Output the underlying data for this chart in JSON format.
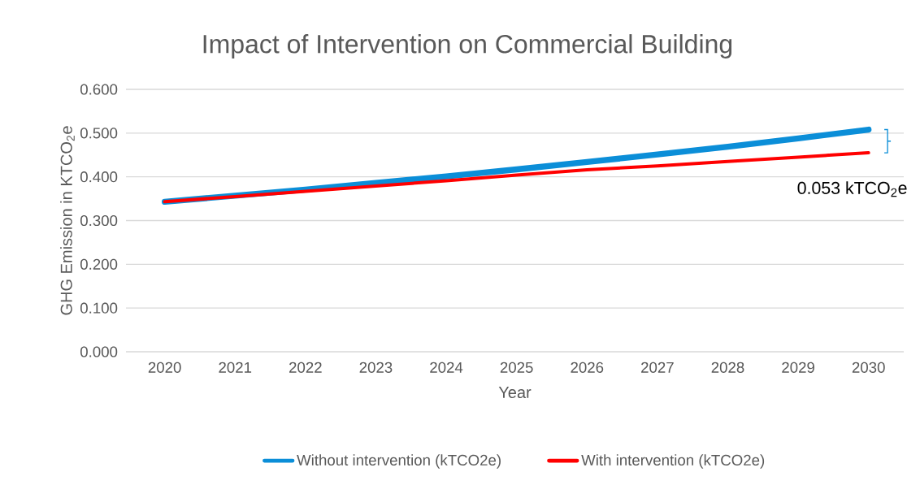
{
  "chart_data": {
    "type": "line",
    "title": "Impact of Intervention on Commercial Building",
    "xlabel": "Year",
    "ylabel": "GHG Emission in KTCO$_{2}$e",
    "categories": [
      "2020",
      "2021",
      "2022",
      "2023",
      "2024",
      "2025",
      "2026",
      "2027",
      "2028",
      "2029",
      "2030"
    ],
    "series": [
      {
        "name": "Without intervention (kTCO2e)",
        "color": "#0b8ed8",
        "values": [
          0.343,
          0.357,
          0.371,
          0.386,
          0.401,
          0.417,
          0.434,
          0.451,
          0.469,
          0.488,
          0.508
        ]
      },
      {
        "name": "With intervention (kTCO2e)",
        "color": "#ff0000",
        "values": [
          0.343,
          0.355,
          0.367,
          0.379,
          0.391,
          0.404,
          0.416,
          0.425,
          0.435,
          0.445,
          0.455
        ]
      }
    ],
    "ylim": [
      0,
      0.6
    ],
    "yticks": [
      {
        "value": 0,
        "label": "0.000"
      },
      {
        "value": 0.1,
        "label": "0.100"
      },
      {
        "value": 0.2,
        "label": "0.200"
      },
      {
        "value": 0.3,
        "label": "0.300"
      },
      {
        "value": 0.4,
        "label": "0.400"
      },
      {
        "value": 0.5,
        "label": "0.500"
      },
      {
        "value": 0.6,
        "label": "0.600"
      }
    ],
    "grid": "y",
    "legend": "bottom",
    "marker": "none",
    "line_style": "solid",
    "annotations": [
      "0.053 kTCO$_{2}$e"
    ]
  }
}
